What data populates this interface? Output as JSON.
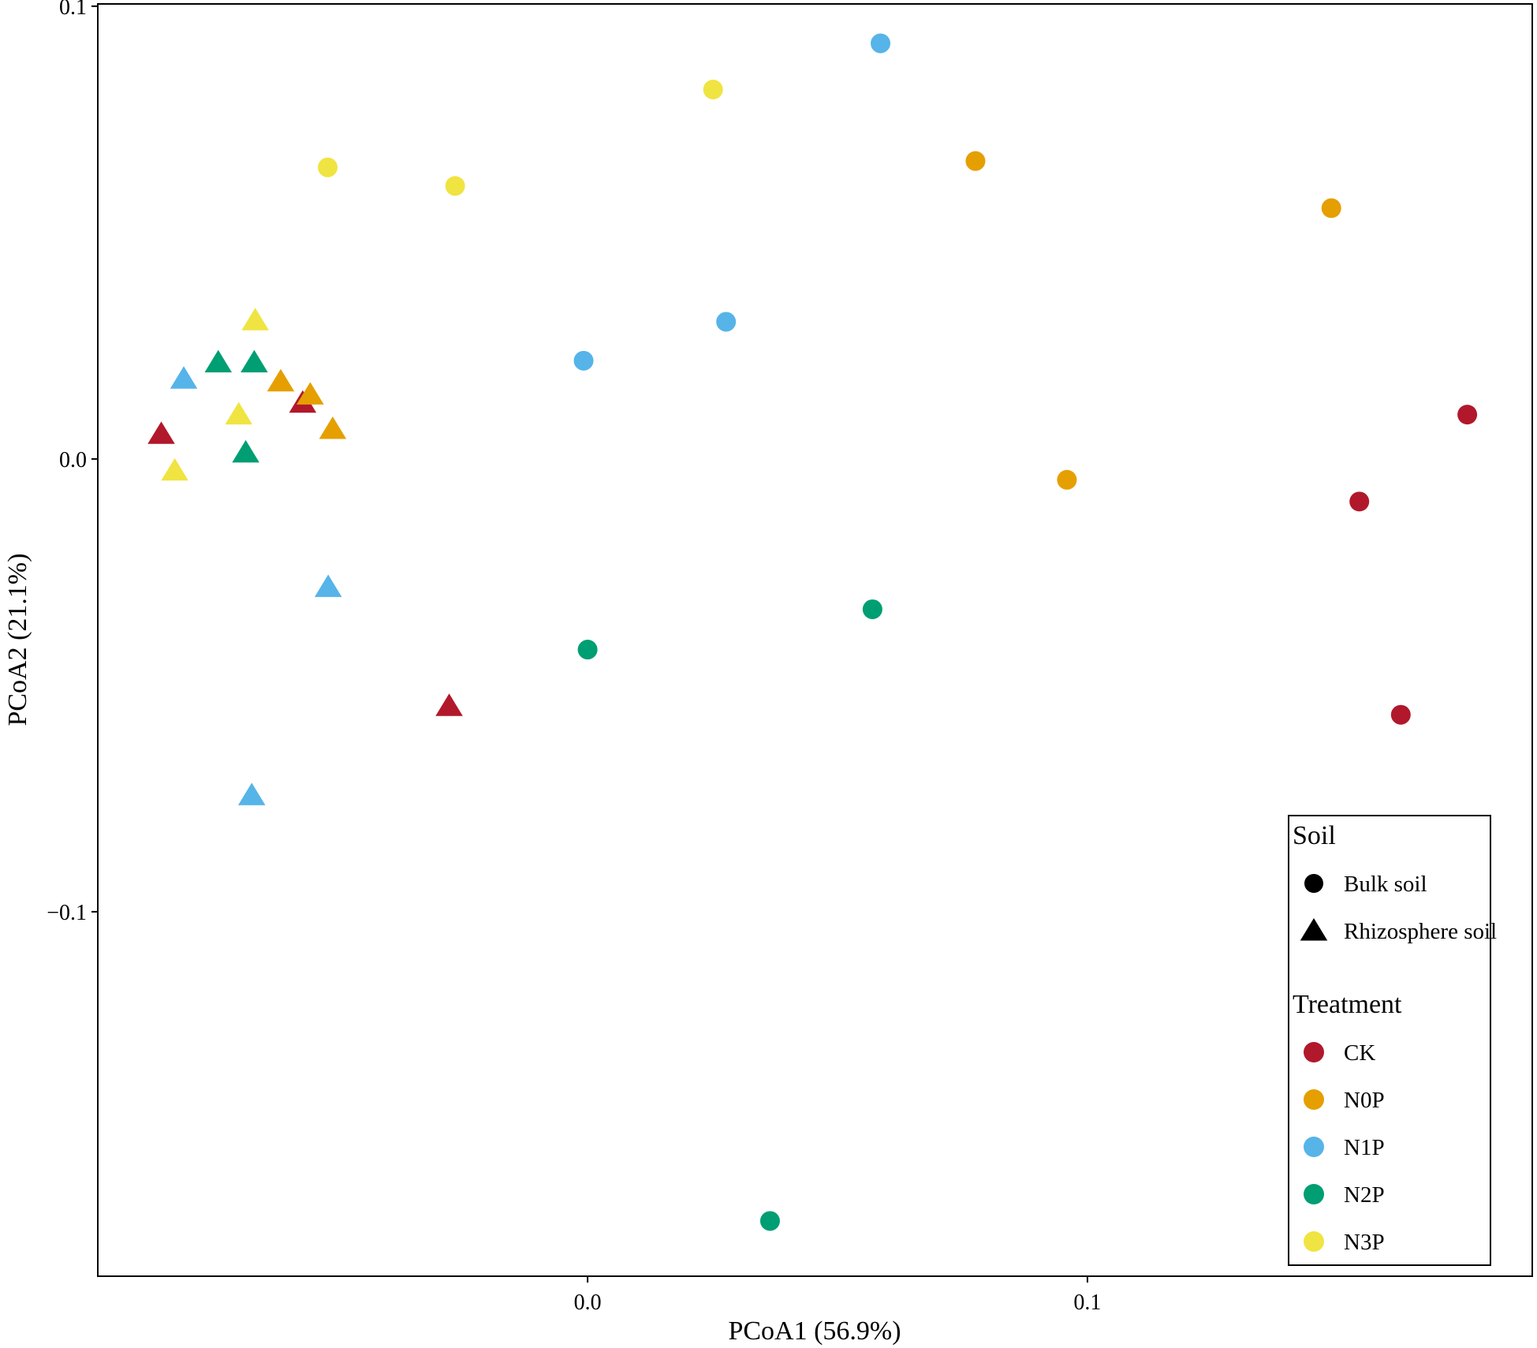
{
  "chart_data": {
    "type": "scatter",
    "xlabel": "PCoA1 (56.9%)",
    "ylabel": "PCoA2 (21.1%)",
    "xlim": [
      -0.098,
      0.189
    ],
    "ylim": [
      -0.1805,
      0.1005
    ],
    "x_ticks": [
      {
        "value": 0.0,
        "label": "0.0"
      },
      {
        "value": 0.1,
        "label": "0.1"
      }
    ],
    "y_ticks": [
      {
        "value": 0.1,
        "label": "0.1"
      },
      {
        "value": 0.0,
        "label": "0.0"
      },
      {
        "value": -0.1,
        "label": "−0.1"
      }
    ],
    "grid": false,
    "legend": {
      "position": "bottom-right",
      "soil_title": "Soil",
      "soil_items": [
        {
          "label": "Bulk soil",
          "shape": "circle"
        },
        {
          "label": "Rhizosphere soil",
          "shape": "triangle"
        }
      ],
      "treatment_title": "Treatment",
      "treatment_items": [
        {
          "label": "CK",
          "color": "#B2182B"
        },
        {
          "label": "N0P",
          "color": "#E69F00"
        },
        {
          "label": "N1P",
          "color": "#56B4E9"
        },
        {
          "label": "N2P",
          "color": "#009E73"
        },
        {
          "label": "N3P",
          "color": "#F0E442"
        }
      ]
    },
    "series": [
      {
        "treatment": "CK",
        "soil": "Bulk soil",
        "points": [
          [
            0.176,
            0.0098
          ],
          [
            0.1544,
            -0.0094
          ],
          [
            0.1627,
            -0.0565
          ]
        ]
      },
      {
        "treatment": "CK",
        "soil": "Rhizosphere soil",
        "points": [
          [
            -0.0853,
            0.0055
          ],
          [
            -0.057,
            0.0124
          ],
          [
            -0.0277,
            -0.0546
          ]
        ]
      },
      {
        "treatment": "N0P",
        "soil": "Bulk soil",
        "points": [
          [
            0.0776,
            0.0658
          ],
          [
            0.1488,
            0.0554
          ],
          [
            0.0959,
            -0.0046
          ]
        ]
      },
      {
        "treatment": "N0P",
        "soil": "Rhizosphere soil",
        "points": [
          [
            -0.0614,
            0.0171
          ],
          [
            -0.0555,
            0.0142
          ],
          [
            -0.051,
            0.0066
          ]
        ]
      },
      {
        "treatment": "N1P",
        "soil": "Bulk soil",
        "points": [
          [
            0.0586,
            0.0918
          ],
          [
            0.0277,
            0.0303
          ],
          [
            -0.0008,
            0.0217
          ]
        ]
      },
      {
        "treatment": "N1P",
        "soil": "Rhizosphere soil",
        "points": [
          [
            -0.0808,
            0.0177
          ],
          [
            -0.0519,
            -0.0283
          ],
          [
            -0.0672,
            -0.0743
          ]
        ]
      },
      {
        "treatment": "N2P",
        "soil": "Bulk soil",
        "points": [
          [
            0.057,
            -0.0332
          ],
          [
            0.0,
            -0.0421
          ],
          [
            0.0365,
            -0.1683
          ]
        ]
      },
      {
        "treatment": "N2P",
        "soil": "Rhizosphere soil",
        "points": [
          [
            -0.0739,
            0.0213
          ],
          [
            -0.0667,
            0.0213
          ],
          [
            -0.0684,
            0.0014
          ]
        ]
      },
      {
        "treatment": "N3P",
        "soil": "Bulk soil",
        "points": [
          [
            0.0251,
            0.0816
          ],
          [
            -0.052,
            0.0644
          ],
          [
            -0.0265,
            0.0603
          ]
        ]
      },
      {
        "treatment": "N3P",
        "soil": "Rhizosphere soil",
        "points": [
          [
            -0.0665,
            0.0306
          ],
          [
            -0.0698,
            0.0098
          ],
          [
            -0.0826,
            -0.0026
          ]
        ]
      }
    ]
  }
}
